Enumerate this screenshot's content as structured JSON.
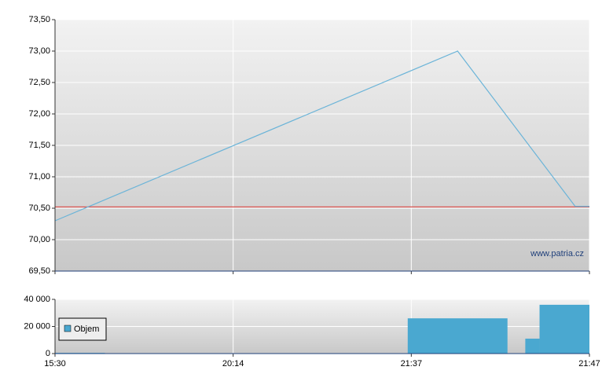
{
  "chart_data": [
    {
      "type": "line",
      "xlim": [
        0,
        3
      ],
      "xticks": [
        {
          "value": 0,
          "label": "15:30"
        },
        {
          "value": 1,
          "label": "20:14"
        },
        {
          "value": 2,
          "label": "21:37"
        },
        {
          "value": 3,
          "label": "21:47"
        }
      ],
      "ylim": [
        69.5,
        73.5
      ],
      "yticks": [
        {
          "value": 69.5,
          "label": "69,50"
        },
        {
          "value": 70,
          "label": "70,00"
        },
        {
          "value": 70.5,
          "label": "70,50"
        },
        {
          "value": 71,
          "label": "71,00"
        },
        {
          "value": 71.5,
          "label": "71,50"
        },
        {
          "value": 72,
          "label": "72,00"
        },
        {
          "value": 72.5,
          "label": "72,50"
        },
        {
          "value": 73,
          "label": "73,00"
        },
        {
          "value": 73.5,
          "label": "73,50"
        }
      ],
      "grid": true,
      "x": [
        0,
        2.26,
        2.92,
        3
      ],
      "values": [
        70.3,
        73.0,
        70.53,
        70.53
      ],
      "color": "#6bb4d8",
      "reference_line": 70.52,
      "reference_color": "#d9534f",
      "watermark": "www.patria.cz"
    },
    {
      "type": "bar",
      "xlim": [
        0,
        3
      ],
      "xticks": [
        {
          "value": 0,
          "label": "15:30"
        },
        {
          "value": 1,
          "label": "20:14"
        },
        {
          "value": 2,
          "label": "21:37"
        },
        {
          "value": 3,
          "label": "21:47"
        }
      ],
      "ylim": [
        0,
        40000
      ],
      "yticks": [
        {
          "value": 0,
          "label": "0"
        },
        {
          "value": 20000,
          "label": "20 000"
        },
        {
          "value": 40000,
          "label": "40 000"
        }
      ],
      "grid": true,
      "series": [
        {
          "name": "Objem",
          "color": "#4aa8d0",
          "x_start": [
            0,
            1.98,
            2.64,
            2.72
          ],
          "x_end": [
            0.28,
            2.54,
            2.72,
            3
          ],
          "values": [
            500,
            26000,
            11000,
            36000
          ]
        }
      ],
      "legend": "bottom-left"
    }
  ]
}
